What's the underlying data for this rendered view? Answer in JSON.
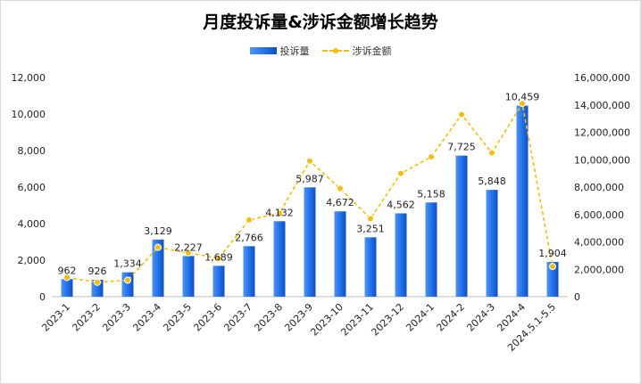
{
  "chart_data": {
    "type": "bar+line",
    "title": "月度投诉量&涉诉金额增长趋势",
    "categories": [
      "2023-1",
      "2023-2",
      "2023-3",
      "2023-4",
      "2023-5",
      "2023-6",
      "2023-7",
      "2023-8",
      "2023-9",
      "2023-10",
      "2023-11",
      "2023-12",
      "2024-1",
      "2024-2",
      "2024-3",
      "2024-4",
      "2024.5.1-5.5"
    ],
    "series": [
      {
        "name": "投诉量",
        "type": "bar",
        "axis": "left",
        "color": "#1f6fe6",
        "values": [
          962,
          926,
          1334,
          3129,
          2227,
          1689,
          2766,
          4132,
          5987,
          4672,
          3251,
          4562,
          5158,
          7725,
          5848,
          10459,
          1904
        ],
        "labels": [
          "962",
          "926",
          "1,334",
          "3,129",
          "2,227",
          "1,689",
          "2,766",
          "4,132",
          "5,987",
          "4,672",
          "3,251",
          "4,562",
          "5,158",
          "7,725",
          "5,848",
          "10,459",
          "1,904"
        ]
      },
      {
        "name": "涉诉金额",
        "type": "line",
        "axis": "right",
        "color": "#f2bd10",
        "values": [
          1400000,
          1050000,
          1200000,
          3600000,
          3200000,
          2800000,
          5600000,
          6100000,
          9900000,
          7900000,
          5700000,
          9000000,
          10200000,
          13300000,
          10500000,
          14100000,
          2200000
        ]
      }
    ],
    "y_left": {
      "min": 0,
      "max": 12000,
      "ticks": [
        "0",
        "2,000",
        "4,000",
        "6,000",
        "8,000",
        "10,000",
        "12,000"
      ]
    },
    "y_right": {
      "min": 0,
      "max": 16000000,
      "ticks": [
        "0",
        "2,000,000",
        "4,000,000",
        "6,000,000",
        "8,000,000",
        "10,000,000",
        "12,000,000",
        "14,000,000",
        "16,000,000"
      ]
    },
    "legend_position": "top-center",
    "grid": false
  },
  "legend": {
    "bar_label": "投诉量",
    "line_label": "涉诉金额"
  }
}
